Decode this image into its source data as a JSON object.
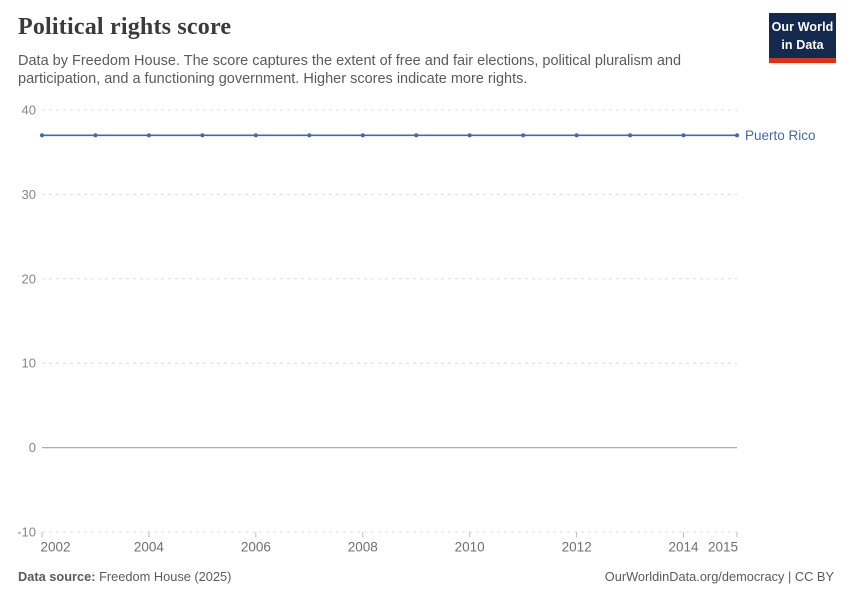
{
  "header": {
    "title": "Political rights score",
    "subtitle": "Data by Freedom House. The score captures the extent of free and fair elections, political pluralism and participation, and a functioning government. Higher scores indicate more rights.",
    "logo": "Our World\nin Data"
  },
  "chart_data": {
    "type": "line",
    "title": "Political rights score",
    "xlabel": "",
    "ylabel": "",
    "xlim": [
      2002,
      2015
    ],
    "ylim": [
      -10,
      40
    ],
    "x_ticks": [
      2002,
      2004,
      2006,
      2008,
      2010,
      2012,
      2014,
      2015
    ],
    "y_ticks": [
      -10,
      0,
      10,
      20,
      30,
      40
    ],
    "grid": "horizontal-dashed",
    "legend_position": "end-of-line-label",
    "series": [
      {
        "name": "Puerto Rico",
        "color": "#4468a9",
        "x": [
          2002,
          2003,
          2004,
          2005,
          2006,
          2007,
          2008,
          2009,
          2010,
          2011,
          2012,
          2013,
          2014,
          2015
        ],
        "values": [
          37,
          37,
          37,
          37,
          37,
          37,
          37,
          37,
          37,
          37,
          37,
          37,
          37,
          37
        ]
      }
    ]
  },
  "footer": {
    "source_label": "Data source:",
    "source_value": " Freedom House (2025)",
    "credit": "OurWorldinData.org/democracy | CC BY"
  },
  "colors": {
    "accent-blue": "#4468a9",
    "logo-navy": "#14294e",
    "logo-red": "#dc3116",
    "grid-gray": "#dcdcdc",
    "axis-gray": "#afafaf",
    "text-gray": "#5b5b5b"
  }
}
